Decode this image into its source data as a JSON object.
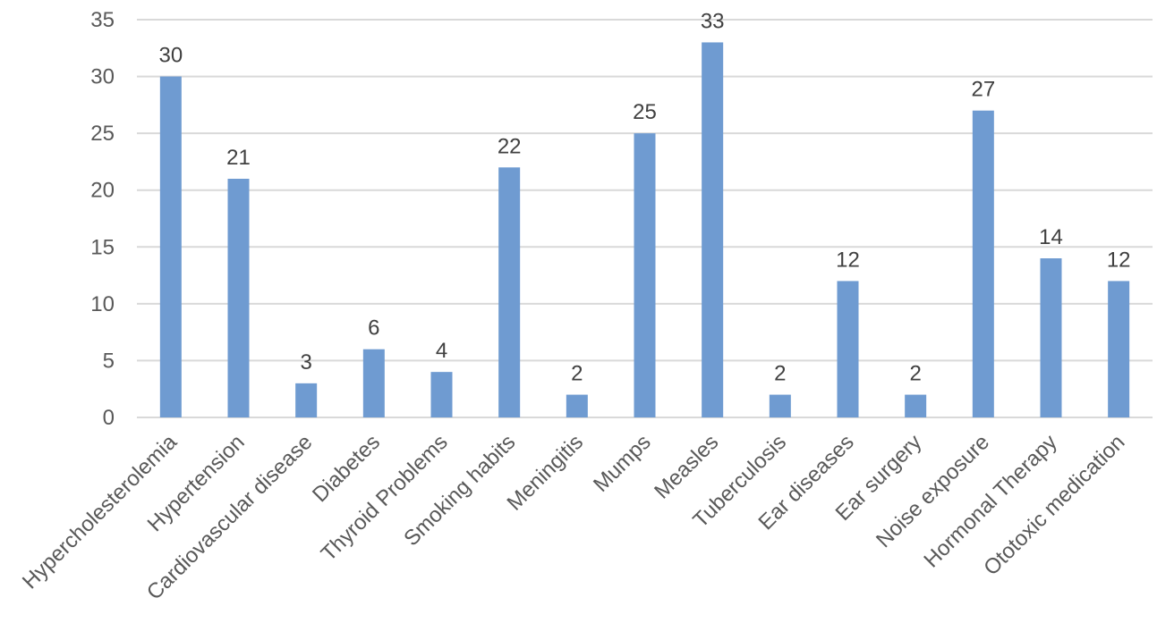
{
  "chart_data": {
    "type": "bar",
    "title": "",
    "xlabel": "",
    "ylabel": "",
    "categories": [
      "Hypercholesterolemia",
      "Hypertension",
      "Cardiovascular disease",
      "Diabetes",
      "Thyroid Problems",
      "Smoking habits",
      "Meningitis",
      "Mumps",
      "Measles",
      "Tuberculosis",
      "Ear diseases",
      "Ear surgery",
      "Noise exposure",
      "Hormonal Therapy",
      "Ototoxic medication"
    ],
    "values": [
      30,
      21,
      3,
      6,
      4,
      22,
      2,
      25,
      33,
      2,
      12,
      2,
      27,
      14,
      12
    ],
    "ylim": [
      0,
      35
    ],
    "yticks": [
      0,
      5,
      10,
      15,
      20,
      25,
      30,
      35
    ],
    "data_labels": true,
    "grid": true,
    "legend": "none",
    "bar_color": "#6f9bd1"
  }
}
